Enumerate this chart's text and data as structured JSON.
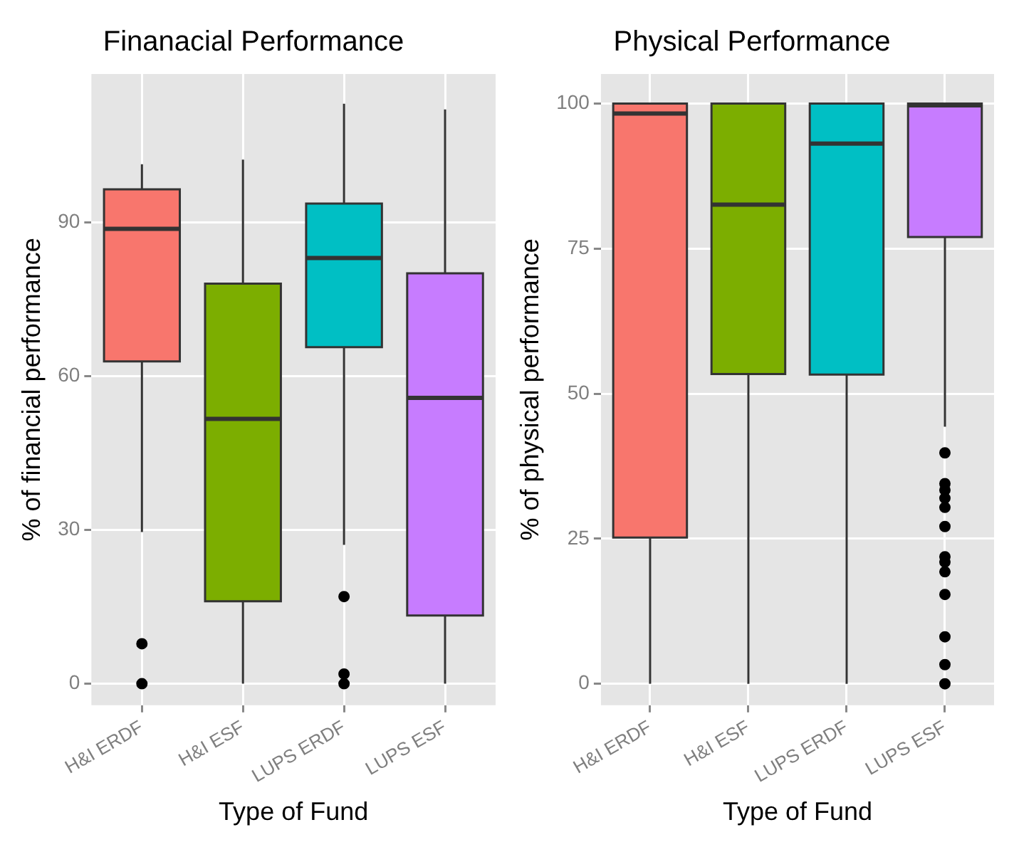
{
  "chart_data": [
    {
      "type": "box",
      "title": "Finanacial Performance",
      "xlabel": "Type of Fund",
      "ylabel": "% of financial performance",
      "categories": [
        "H&I ERDF",
        "H&I ESF",
        "LUPS ERDF",
        "LUPS ESF"
      ],
      "colors": [
        "#f8766d",
        "#7cae00",
        "#00bfc4",
        "#c77cff"
      ],
      "ylim": [
        -4.2,
        119
      ],
      "yticks": [
        0,
        30,
        60,
        90
      ],
      "grid": true,
      "boxes": [
        {
          "low": 29.6,
          "q1": 62.9,
          "median": 88.8,
          "q3": 96.5,
          "high": 101.4,
          "outliers": [
            7.8,
            0
          ]
        },
        {
          "low": 0,
          "q1": 16.1,
          "median": 51.7,
          "q3": 78.1,
          "high": 102.3
        },
        {
          "low": 27.1,
          "q1": 65.7,
          "median": 83.1,
          "q3": 93.7,
          "high": 113.2,
          "outliers": [
            17,
            1.9,
            0
          ]
        },
        {
          "low": 0,
          "q1": 13.3,
          "median": 55.8,
          "q3": 80.1,
          "high": 112.1
        }
      ]
    },
    {
      "type": "box",
      "title": "Physical Performance",
      "xlabel": "Type of Fund",
      "ylabel": "% of physical performance",
      "categories": [
        "H&I ERDF",
        "H&I ESF",
        "LUPS ERDF",
        "LUPS ESF"
      ],
      "colors": [
        "#f8766d",
        "#7cae00",
        "#00bfc4",
        "#c77cff"
      ],
      "ylim": [
        -3.7,
        105.1
      ],
      "yticks": [
        0,
        25,
        50,
        75,
        100
      ],
      "grid": true,
      "boxes": [
        {
          "low": 0,
          "q1": 25.2,
          "median": 98.3,
          "q3": 100,
          "high": 100
        },
        {
          "low": 0,
          "q1": 53.4,
          "median": 82.6,
          "q3": 100,
          "high": 100
        },
        {
          "low": 0,
          "q1": 53.3,
          "median": 93.1,
          "q3": 100,
          "high": 100
        },
        {
          "low": 44.3,
          "q1": 77,
          "median": 99.7,
          "q3": 100,
          "high": 100,
          "outliers": [
            39.8,
            34.5,
            33.4,
            32,
            30.4,
            27.1,
            21.9,
            21,
            19.3,
            15.4,
            8.1,
            3.3,
            0
          ]
        }
      ]
    }
  ]
}
